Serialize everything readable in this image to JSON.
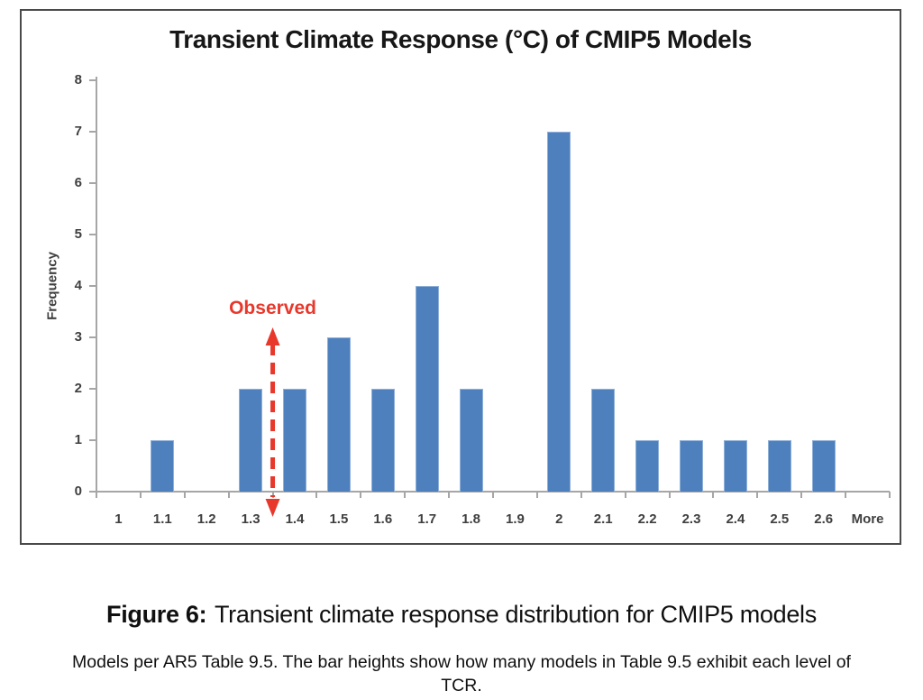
{
  "figure": {
    "caption_label": "Figure 6:",
    "caption_text": "Transient climate response distribution for CMIP5 models",
    "subcaption": "Models per AR5 Table 9.5. The bar heights show how many models in Table 9.5 exhibit each level of TCR."
  },
  "chart_data": {
    "type": "bar",
    "title": "Transient Climate Response (°C) of CMIP5 Models",
    "xlabel": "",
    "ylabel": "Frequency",
    "categories": [
      "1",
      "1.1",
      "1.2",
      "1.3",
      "1.4",
      "1.5",
      "1.6",
      "1.7",
      "1.8",
      "1.9",
      "2",
      "2.1",
      "2.2",
      "2.3",
      "2.4",
      "2.5",
      "2.6",
      "More"
    ],
    "values": [
      0,
      1,
      0,
      2,
      2,
      3,
      2,
      4,
      2,
      0,
      7,
      2,
      1,
      1,
      1,
      1,
      1,
      0
    ],
    "ylim": [
      0,
      8
    ],
    "yticks": [
      0,
      1,
      2,
      3,
      4,
      5,
      6,
      7,
      8
    ],
    "grid": false,
    "legend": "none",
    "bar_color": "#4d80bd",
    "annotation": {
      "label": "Observed",
      "style": "red dashed vertical double-headed arrow",
      "between_categories": [
        "1.3",
        "1.4"
      ],
      "x_value": 1.35,
      "color": "#e8382c"
    }
  }
}
